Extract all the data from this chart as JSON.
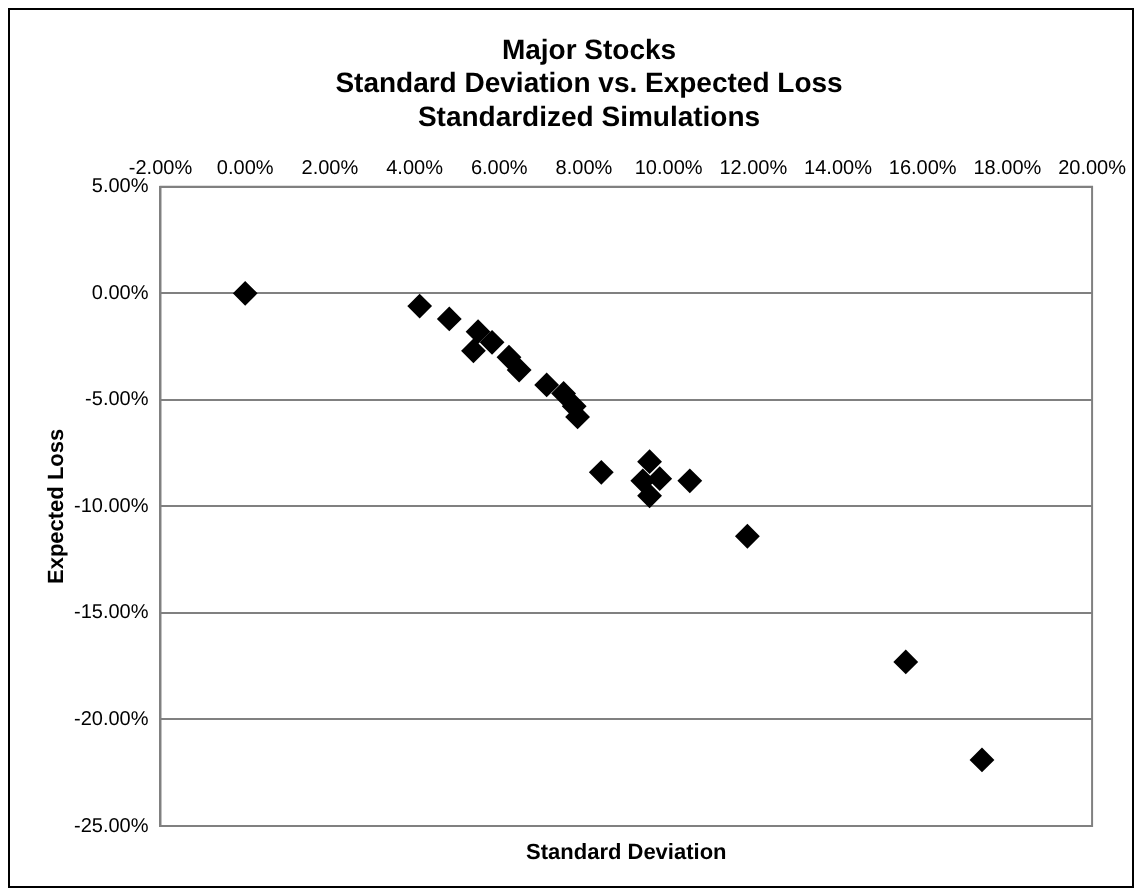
{
  "chart_data": {
    "type": "scatter",
    "title": "Major Stocks\nStandard Deviation vs. Expected Loss\nStandardized Simulations",
    "xlabel": "Standard Deviation",
    "ylabel": "Expected Loss",
    "x": [
      0,
      4.12,
      4.82,
      5.5,
      5.39,
      5.83,
      6.23,
      6.47,
      7.12,
      7.52,
      7.77,
      7.85,
      8.41,
      9.55,
      9.39,
      9.79,
      9.55,
      10.5,
      11.86,
      15.6,
      17.4
    ],
    "series": [
      {
        "color": "#000000",
        "values": [
          0,
          -0.6,
          -1.2,
          -1.8,
          -2.7,
          -2.3,
          -3.0,
          -3.6,
          -4.3,
          -4.7,
          -5.3,
          -5.8,
          -8.4,
          -7.9,
          -8.8,
          -8.7,
          -9.5,
          -8.8,
          -11.4,
          -17.3,
          -21.9
        ]
      }
    ],
    "xlim": [
      -2,
      20
    ],
    "xticks": [
      {
        "value": -2,
        "label": "-2.00%"
      },
      {
        "value": 0,
        "label": "0.00%"
      },
      {
        "value": 2,
        "label": "2.00%"
      },
      {
        "value": 4,
        "label": "4.00%"
      },
      {
        "value": 6,
        "label": "6.00%"
      },
      {
        "value": 8,
        "label": "8.00%"
      },
      {
        "value": 10,
        "label": "10.00%"
      },
      {
        "value": 12,
        "label": "12.00%"
      },
      {
        "value": 14,
        "label": "14.00%"
      },
      {
        "value": 16,
        "label": "16.00%"
      },
      {
        "value": 18,
        "label": "18.00%"
      },
      {
        "value": 20,
        "label": "20.00%"
      }
    ],
    "ylim": [
      -25,
      5
    ],
    "yticks": [
      {
        "value": 5,
        "label": "5.00%"
      },
      {
        "value": 0,
        "label": "0.00%"
      },
      {
        "value": -5,
        "label": "-5.00%"
      },
      {
        "value": -10,
        "label": "-10.00%"
      },
      {
        "value": -15,
        "label": "-15.00%"
      },
      {
        "value": -20,
        "label": "-20.00%"
      },
      {
        "value": -25,
        "label": "-25.00%"
      }
    ],
    "grid": "y",
    "legend": false,
    "marker": "diamond"
  }
}
